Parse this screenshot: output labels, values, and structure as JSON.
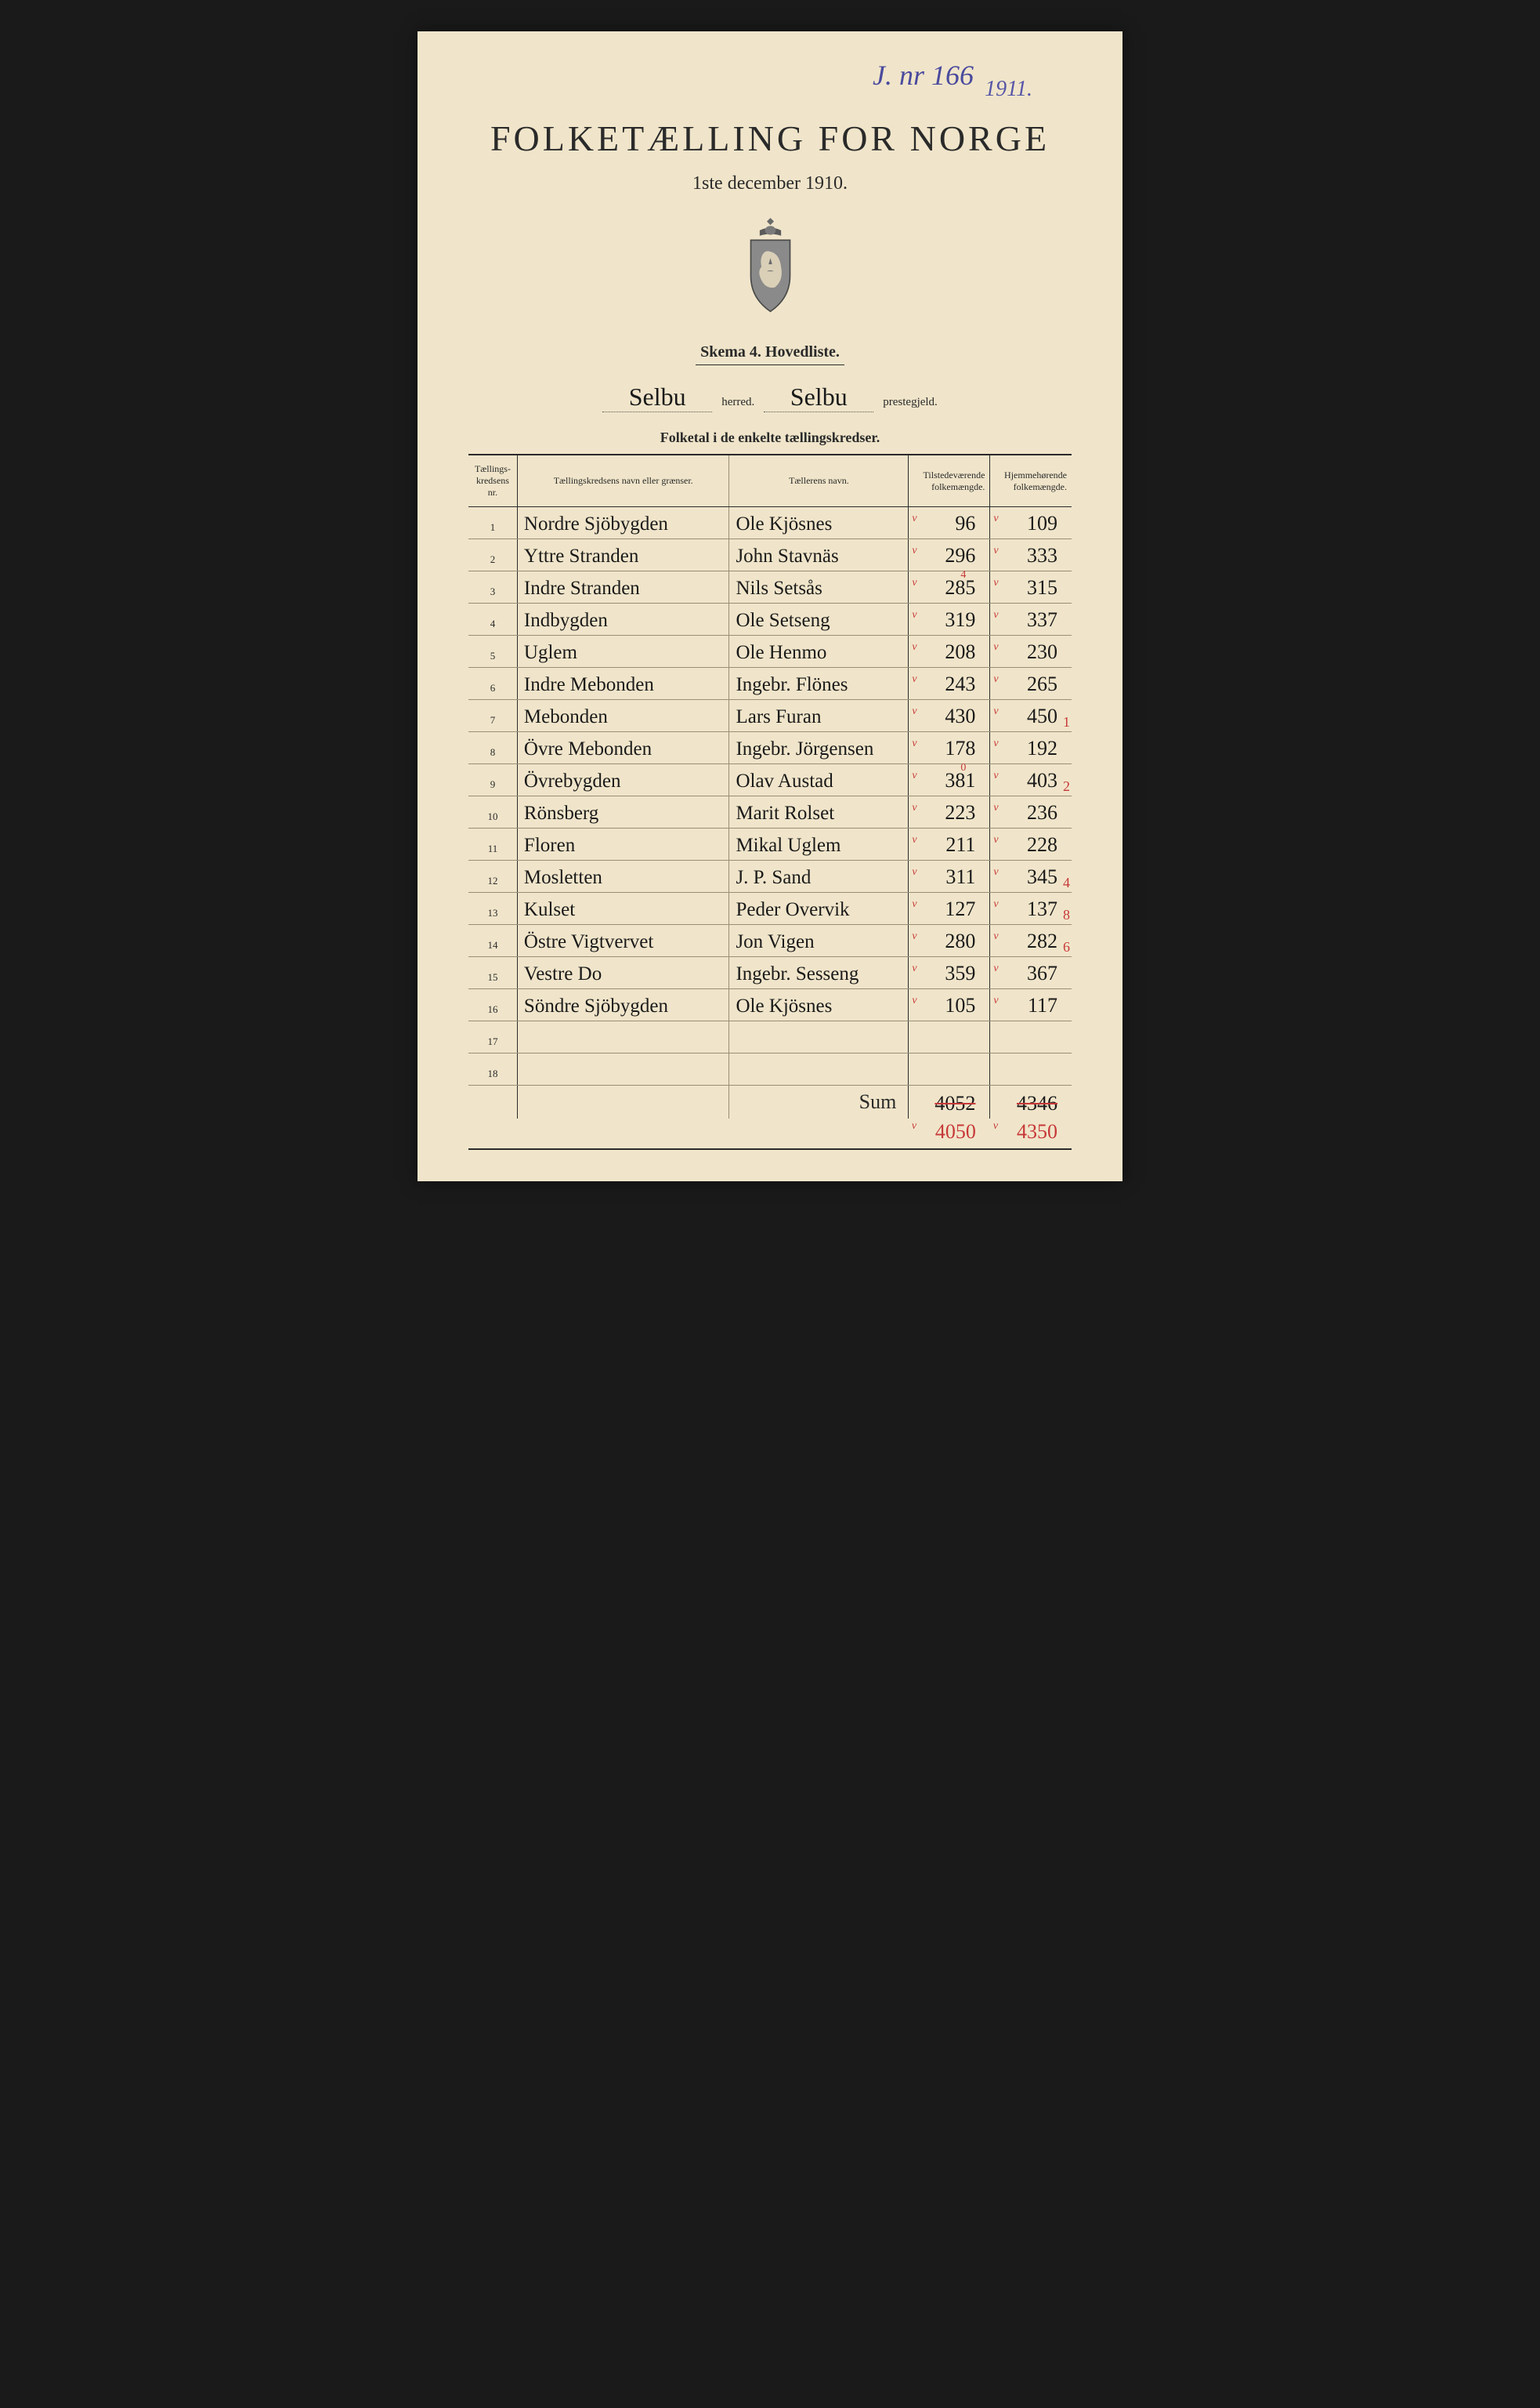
{
  "annotations": {
    "top": "J. nr 166",
    "side": "1911."
  },
  "header": {
    "title": "FOLKETÆLLING FOR NORGE",
    "subtitle": "1ste december 1910.",
    "skema": "Skema 4.   Hovedliste."
  },
  "locality": {
    "herred_value": "Selbu",
    "herred_label": "herred.",
    "prestegjeld_value": "Selbu",
    "prestegjeld_label": "prestegjeld."
  },
  "section_label": "Folketal i de enkelte tællingskredser.",
  "columns": {
    "nr": "Tællings-kredsens nr.",
    "navn": "Tællingskredsens navn eller grænser.",
    "taeller": "Tællerens navn.",
    "tilstede": "Tilstedeværende folkemængde.",
    "hjemme": "Hjemmehørende folkemængde."
  },
  "rows": [
    {
      "nr": "1",
      "navn": "Nordre Sjöbygden",
      "taeller": "Ole Kjösnes",
      "t": "96",
      "h": "109",
      "t_corr": "",
      "h_corr": ""
    },
    {
      "nr": "2",
      "navn": "Yttre Stranden",
      "taeller": "John Stavnäs",
      "t": "296",
      "h": "333",
      "t_corr": "",
      "h_corr": ""
    },
    {
      "nr": "3",
      "navn": "Indre Stranden",
      "taeller": "Nils Setsås",
      "t": "285",
      "h": "315",
      "t_corr": "4",
      "h_corr": ""
    },
    {
      "nr": "4",
      "navn": "Indbygden",
      "taeller": "Ole Setseng",
      "t": "319",
      "h": "337",
      "t_corr": "",
      "h_corr": ""
    },
    {
      "nr": "5",
      "navn": "Uglem",
      "taeller": "Ole Henmo",
      "t": "208",
      "h": "230",
      "t_corr": "",
      "h_corr": ""
    },
    {
      "nr": "6",
      "navn": "Indre Mebonden",
      "taeller": "Ingebr. Flönes",
      "t": "243",
      "h": "265",
      "t_corr": "",
      "h_corr": ""
    },
    {
      "nr": "7",
      "navn": "Mebonden",
      "taeller": "Lars Furan",
      "t": "430",
      "h": "450",
      "t_corr": "",
      "h_corr": "1"
    },
    {
      "nr": "8",
      "navn": "Övre Mebonden",
      "taeller": "Ingebr. Jörgensen",
      "t": "178",
      "h": "192",
      "t_corr": "",
      "h_corr": ""
    },
    {
      "nr": "9",
      "navn": "Övrebygden",
      "taeller": "Olav Austad",
      "t": "381",
      "h": "403",
      "t_corr": "0",
      "h_corr": "2"
    },
    {
      "nr": "10",
      "navn": "Rönsberg",
      "taeller": "Marit Rolset",
      "t": "223",
      "h": "236",
      "t_corr": "",
      "h_corr": ""
    },
    {
      "nr": "11",
      "navn": "Floren",
      "taeller": "Mikal Uglem",
      "t": "211",
      "h": "228",
      "t_corr": "",
      "h_corr": ""
    },
    {
      "nr": "12",
      "navn": "Mosletten",
      "taeller": "J. P. Sand",
      "t": "311",
      "h": "345",
      "t_corr": "",
      "h_corr": "4"
    },
    {
      "nr": "13",
      "navn": "Kulset",
      "taeller": "Peder Overvik",
      "t": "127",
      "h": "137",
      "t_corr": "",
      "h_corr": "8"
    },
    {
      "nr": "14",
      "navn": "Östre Vigtvervet",
      "taeller": "Jon Vigen",
      "t": "280",
      "h": "282",
      "t_corr": "",
      "h_corr": "6"
    },
    {
      "nr": "15",
      "navn": "Vestre    Do",
      "taeller": "Ingebr. Sesseng",
      "t": "359",
      "h": "367",
      "t_corr": "",
      "h_corr": ""
    },
    {
      "nr": "16",
      "navn": "Söndre Sjöbygden",
      "taeller": "Ole Kjösnes",
      "t": "105",
      "h": "117",
      "t_corr": "",
      "h_corr": ""
    },
    {
      "nr": "17",
      "navn": "",
      "taeller": "",
      "t": "",
      "h": "",
      "t_corr": "",
      "h_corr": ""
    },
    {
      "nr": "18",
      "navn": "",
      "taeller": "",
      "t": "",
      "h": "",
      "t_corr": "",
      "h_corr": ""
    }
  ],
  "sum": {
    "label": "Sum",
    "t_orig": "4052",
    "h_orig": "4346",
    "t_corr": "4050",
    "h_corr": "4350"
  },
  "colors": {
    "paper": "#f0e5ca",
    "ink": "#2a2a2a",
    "blue_ink": "#4a4a9e",
    "red_ink": "#c73838",
    "background": "#1a1a1a"
  }
}
